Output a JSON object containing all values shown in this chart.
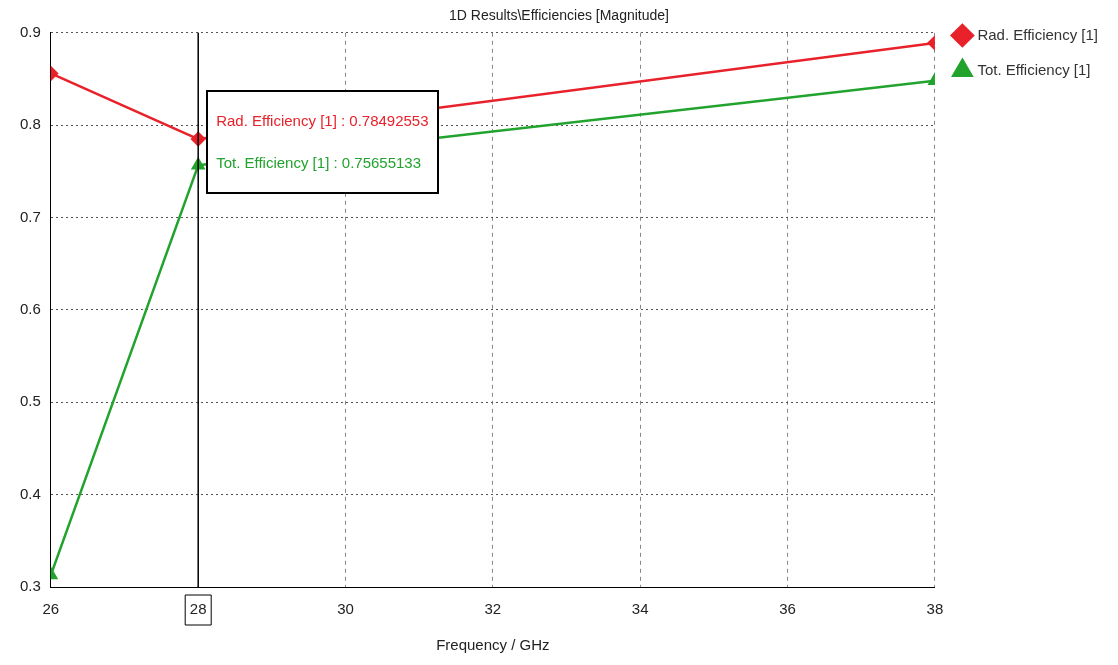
{
  "chart_data": {
    "type": "line",
    "title": "1D Results\\Efficiencies [Magnitude]",
    "xlabel": "Frequency / GHz",
    "x": [
      26,
      28,
      38
    ],
    "series": [
      {
        "name": "Rad. Efficiency [1]",
        "color": "#e8212a",
        "values": [
          0.856,
          0.78492553,
          0.889
        ],
        "marker": "diamond"
      },
      {
        "name": "Tot. Efficiency [1]",
        "color": "#21a32d",
        "values": [
          0.313,
          0.75655133,
          0.848
        ],
        "marker": "triangle"
      }
    ],
    "xlim": [
      26,
      38
    ],
    "xticks": [
      26,
      28,
      30,
      32,
      34,
      36,
      38
    ],
    "ylim": [
      0.3,
      0.9
    ],
    "yticks": [
      0.3,
      0.4,
      0.5,
      0.6,
      0.7,
      0.8,
      0.9
    ],
    "grid": true,
    "legend": "top right",
    "line_style": "solid",
    "ref_lines": [
      {
        "axis": "x",
        "value": 28,
        "color": "#000000"
      }
    ],
    "annotations": [
      {
        "text": "Rad. Efficiency [1] : 0.78492553",
        "x": 28,
        "y": 0.78492553
      },
      {
        "text": "Tot. Efficiency [1] : 0.75655133",
        "x": 28,
        "y": 0.75655133
      }
    ]
  }
}
